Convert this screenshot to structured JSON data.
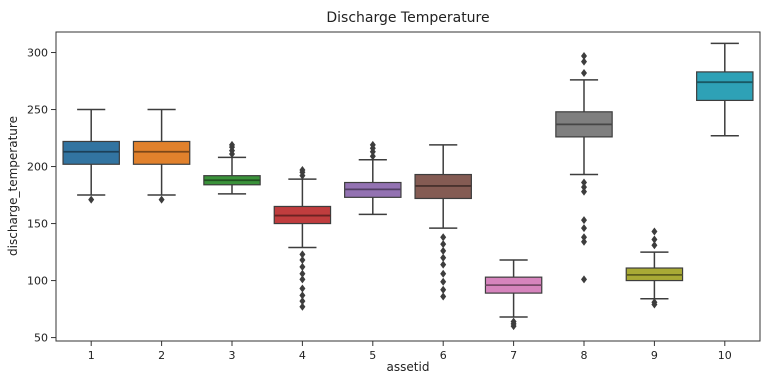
{
  "chart_data": {
    "type": "box",
    "title": "Discharge Temperature",
    "xlabel": "assetid",
    "ylabel": "discharge_temperature",
    "ylim": [
      47,
      318
    ],
    "yticks": [
      50,
      100,
      150,
      200,
      250,
      300
    ],
    "categories": [
      "1",
      "2",
      "3",
      "4",
      "5",
      "6",
      "7",
      "8",
      "9",
      "10"
    ],
    "grid": false,
    "boxes": [
      {
        "category": "1",
        "color": "#3274a1",
        "whislo": 175,
        "q1": 202,
        "med": 213,
        "q3": 222,
        "whishi": 250,
        "fliers": [
          171
        ]
      },
      {
        "category": "2",
        "color": "#e1812c",
        "whislo": 175,
        "q1": 202,
        "med": 213,
        "q3": 222,
        "whishi": 250,
        "fliers": [
          171
        ]
      },
      {
        "category": "3",
        "color": "#3a923a",
        "whislo": 176,
        "q1": 184,
        "med": 188,
        "q3": 192,
        "whishi": 208,
        "fliers": [
          211,
          214,
          217,
          219
        ]
      },
      {
        "category": "4",
        "color": "#c03d3e",
        "whislo": 129,
        "q1": 150,
        "med": 157,
        "q3": 165,
        "whishi": 189,
        "fliers": [
          192,
          195,
          197,
          123,
          118,
          112,
          106,
          101,
          93,
          87,
          82,
          77
        ]
      },
      {
        "category": "5",
        "color": "#9372b2",
        "whislo": 158,
        "q1": 173,
        "med": 180,
        "q3": 186,
        "whishi": 206,
        "fliers": [
          209,
          213,
          216,
          219
        ]
      },
      {
        "category": "6",
        "color": "#845b53",
        "whislo": 146,
        "q1": 172,
        "med": 183,
        "q3": 193,
        "whishi": 219,
        "fliers": [
          138,
          132,
          126,
          120,
          114,
          106,
          99,
          92,
          86
        ]
      },
      {
        "category": "7",
        "color": "#d684bd",
        "whislo": 68,
        "q1": 89,
        "med": 96,
        "q3": 103,
        "whishi": 118,
        "fliers": [
          64,
          62,
          60
        ]
      },
      {
        "category": "8",
        "color": "#7f7f7f",
        "whislo": 193,
        "q1": 226,
        "med": 237,
        "q3": 248,
        "whishi": 276,
        "fliers": [
          282,
          292,
          297,
          186,
          182,
          178,
          153,
          146,
          138,
          134,
          101
        ]
      },
      {
        "category": "9",
        "color": "#a9aa35",
        "whislo": 84,
        "q1": 100,
        "med": 105,
        "q3": 111,
        "whishi": 125,
        "fliers": [
          131,
          136,
          143,
          81,
          79
        ]
      },
      {
        "category": "10",
        "color": "#2ea1b6",
        "whislo": 227,
        "q1": 258,
        "med": 274,
        "q3": 283,
        "whishi": 308,
        "fliers": []
      }
    ]
  }
}
